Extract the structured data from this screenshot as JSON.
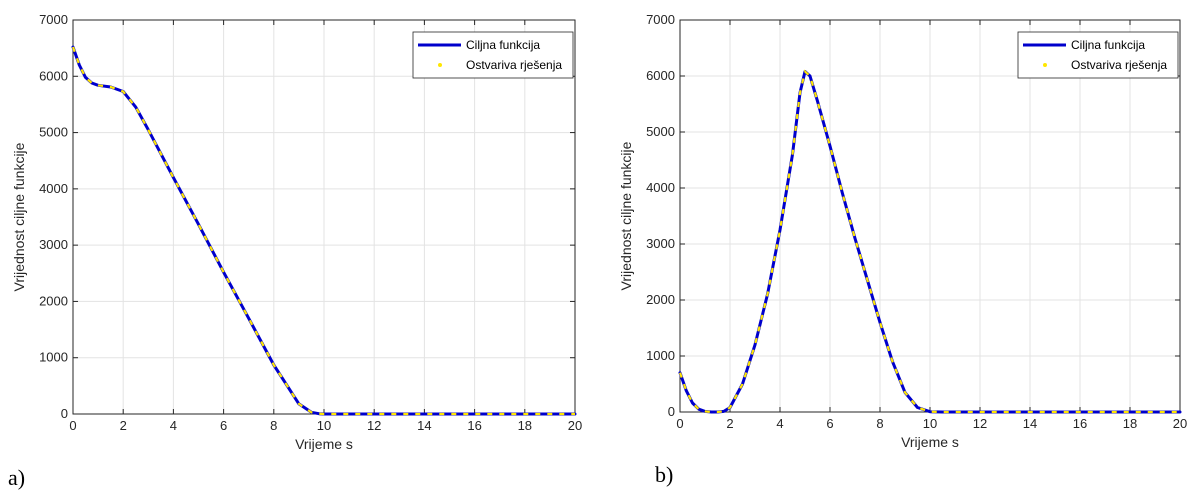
{
  "figure": {
    "panel_labels": [
      "a)",
      "b)"
    ]
  },
  "chart_data": [
    {
      "type": "line",
      "panel": "a)",
      "title": "",
      "xlabel": "Vrijeme s",
      "ylabel": "Vrijednost ciljne funkcije",
      "xlim": [
        0,
        20
      ],
      "ylim": [
        0,
        7000
      ],
      "xticks": [
        0,
        2,
        4,
        6,
        8,
        10,
        12,
        14,
        16,
        18,
        20
      ],
      "yticks": [
        0,
        1000,
        2000,
        3000,
        4000,
        5000,
        6000,
        7000
      ],
      "grid": true,
      "legend_position": "top-right",
      "series": [
        {
          "name": "Ciljna funkcija",
          "style": "solid",
          "color": "#0000CC",
          "x": [
            0,
            0.25,
            0.5,
            0.75,
            1,
            1.5,
            2,
            2.5,
            3,
            4,
            5,
            6,
            7,
            8,
            9,
            9.5,
            9.8,
            10,
            10.5,
            12,
            14,
            16,
            18,
            20
          ],
          "y": [
            6520,
            6200,
            5980,
            5880,
            5840,
            5810,
            5730,
            5450,
            5050,
            4200,
            3370,
            2520,
            1700,
            870,
            180,
            30,
            5,
            0,
            0,
            0,
            0,
            0,
            0,
            0
          ]
        },
        {
          "name": "Ostvariva rješenja",
          "style": "dots",
          "color": "#FFE600",
          "x": [
            0,
            0.25,
            0.5,
            0.75,
            1,
            1.5,
            2,
            2.5,
            3,
            4,
            5,
            6,
            7,
            8,
            9,
            9.5,
            9.8,
            10,
            10.5,
            12,
            14,
            16,
            18,
            20
          ],
          "y": [
            6520,
            6200,
            5980,
            5880,
            5840,
            5810,
            5730,
            5450,
            5050,
            4200,
            3370,
            2520,
            1700,
            870,
            180,
            30,
            5,
            0,
            0,
            0,
            0,
            0,
            0,
            0
          ]
        }
      ]
    },
    {
      "type": "line",
      "panel": "b)",
      "title": "",
      "xlabel": "Vrijeme s",
      "ylabel": "Vrijednost ciljne funkcije",
      "xlim": [
        0,
        20
      ],
      "ylim": [
        0,
        7000
      ],
      "xticks": [
        0,
        2,
        4,
        6,
        8,
        10,
        12,
        14,
        16,
        18,
        20
      ],
      "yticks": [
        0,
        1000,
        2000,
        3000,
        4000,
        5000,
        6000,
        7000
      ],
      "grid": true,
      "legend_position": "top-right",
      "series": [
        {
          "name": "Ciljna funkcija",
          "style": "solid",
          "color": "#0000CC",
          "x": [
            0,
            0.25,
            0.5,
            0.75,
            1,
            1.25,
            1.5,
            1.75,
            2,
            2.5,
            3,
            3.5,
            4,
            4.5,
            4.8,
            5,
            5.2,
            5.5,
            6,
            6.5,
            7,
            7.5,
            8,
            8.5,
            9,
            9.5,
            10,
            10.5,
            12,
            14,
            16,
            18,
            20
          ],
          "y": [
            700,
            380,
            160,
            50,
            10,
            0,
            0,
            10,
            80,
            500,
            1200,
            2100,
            3250,
            4600,
            5700,
            6080,
            6000,
            5550,
            4750,
            3900,
            3100,
            2350,
            1600,
            900,
            350,
            80,
            5,
            0,
            0,
            0,
            0,
            0,
            0
          ]
        },
        {
          "name": "Ostvariva rješenja",
          "style": "dots",
          "color": "#FFE600",
          "x": [
            0,
            0.25,
            0.5,
            0.75,
            1,
            1.25,
            1.5,
            1.75,
            2,
            2.5,
            3,
            3.5,
            4,
            4.5,
            4.8,
            5,
            5.2,
            5.5,
            6,
            6.5,
            7,
            7.5,
            8,
            8.5,
            9,
            9.5,
            10,
            10.5,
            12,
            14,
            16,
            18,
            20
          ],
          "y": [
            700,
            380,
            160,
            50,
            10,
            0,
            0,
            10,
            80,
            500,
            1200,
            2100,
            3250,
            4600,
            5700,
            6080,
            6000,
            5550,
            4750,
            3900,
            3100,
            2350,
            1600,
            900,
            350,
            80,
            5,
            0,
            0,
            0,
            0,
            0,
            0
          ]
        }
      ]
    }
  ]
}
